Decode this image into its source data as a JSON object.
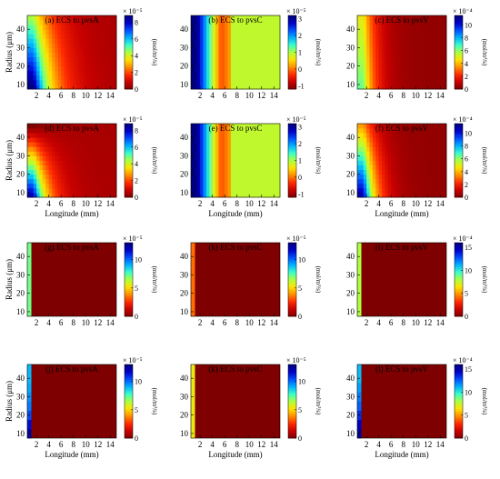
{
  "figure": {
    "colormap": [
      "#7f0000",
      "#c80000",
      "#ff2a00",
      "#ff8c00",
      "#ffe100",
      "#aeff3c",
      "#3cffc8",
      "#00b4ff",
      "#0050ff",
      "#0000c8",
      "#00007f"
    ]
  },
  "chart_data": [
    {
      "id": "a",
      "type": "heatmap",
      "title": "(a) ECS to pvsA",
      "row": 0,
      "col": 0,
      "xlabel": "",
      "ylabel": "Radius (μm)",
      "xticks": [
        2,
        4,
        6,
        8,
        10,
        12,
        14
      ],
      "yticks": [
        10,
        20,
        30,
        40
      ],
      "xlim": [
        0.5,
        15
      ],
      "ylim": [
        7.5,
        47.5
      ],
      "colorbar": {
        "ticks": [
          0,
          2,
          4,
          6,
          8
        ],
        "range": [
          0,
          8.8
        ],
        "exponent": "× 10⁻⁵",
        "unit": "(mol/m³/s)"
      },
      "pattern": "decay",
      "params": {
        "vmax": 9.0,
        "vmin": 0.5,
        "ax": 3.0,
        "cr": 0.55,
        "x0": 1.5
      }
    },
    {
      "id": "b",
      "type": "heatmap",
      "title": "(b) ECS to pvsC",
      "row": 0,
      "col": 1,
      "xlabel": "",
      "ylabel": "",
      "xticks": [
        2,
        4,
        6,
        8,
        10,
        12,
        14
      ],
      "yticks": [
        10,
        20,
        30,
        40
      ],
      "xlim": [
        0.5,
        15
      ],
      "ylim": [
        7.5,
        47.5
      ],
      "colorbar": {
        "ticks": [
          -1,
          0,
          1,
          2,
          3
        ],
        "range": [
          -1.2,
          3.2
        ],
        "exponent": "× 10⁻⁵",
        "unit": "(mol/m³/s)"
      },
      "pattern": "columns",
      "params": {
        "vmin": -1.1,
        "vmax": 3.1,
        "dip": 7.0,
        "plateau": 0.9,
        "x0": 1.5
      }
    },
    {
      "id": "c",
      "type": "heatmap",
      "title": "(c) ECS to pvsV",
      "row": 0,
      "col": 2,
      "xlabel": "",
      "ylabel": "",
      "xticks": [
        2,
        4,
        6,
        8,
        10,
        12,
        14
      ],
      "yticks": [
        10,
        20,
        30,
        40
      ],
      "xlim": [
        0.5,
        15
      ],
      "ylim": [
        7.5,
        47.5
      ],
      "colorbar": {
        "ticks": [
          0,
          2,
          4,
          6,
          8,
          10
        ],
        "range": [
          0,
          11.5
        ],
        "exponent": "× 10⁻⁴",
        "unit": "(mol/m³/s)"
      },
      "pattern": "decay",
      "params": {
        "vmax": 6.5,
        "vmin": 0.3,
        "ax": 2.0,
        "cr": 0.25,
        "x0": 1.5
      }
    },
    {
      "id": "d",
      "type": "heatmap",
      "title": "(d) ECS to pvsA",
      "row": 1,
      "col": 0,
      "xlabel": "Longitude (mm)",
      "ylabel": "Radius (μm)",
      "xticks": [
        2,
        4,
        6,
        8,
        10,
        12,
        14
      ],
      "yticks": [
        10,
        20,
        30,
        40
      ],
      "xlim": [
        0.5,
        15
      ],
      "ylim": [
        7.5,
        47.5
      ],
      "colorbar": {
        "ticks": [
          0,
          2,
          4,
          6,
          8
        ],
        "range": [
          0,
          8.8
        ],
        "exponent": "× 10⁻⁵",
        "unit": "(mol/m³/s)"
      },
      "pattern": "decay",
      "params": {
        "vmax": 8.5,
        "vmin": 0.5,
        "ax": 2.2,
        "cr": 1.1,
        "x0": 1.5
      }
    },
    {
      "id": "e",
      "type": "heatmap",
      "title": "(e) ECS to pvsC",
      "row": 1,
      "col": 1,
      "xlabel": "Longitude (mm)",
      "ylabel": "",
      "xticks": [
        2,
        4,
        6,
        8,
        10,
        12,
        14
      ],
      "yticks": [
        10,
        20,
        30,
        40
      ],
      "xlim": [
        0.5,
        15
      ],
      "ylim": [
        7.5,
        47.5
      ],
      "colorbar": {
        "ticks": [
          -1,
          0,
          1,
          2,
          3
        ],
        "range": [
          -1.2,
          3.2
        ],
        "exponent": "× 10⁻⁵",
        "unit": "(mol/m³/s)"
      },
      "pattern": "columns",
      "params": {
        "vmin": -1.1,
        "vmax": 3.1,
        "dip": 7.0,
        "plateau": 0.9,
        "x0": 1.5
      }
    },
    {
      "id": "f",
      "type": "heatmap",
      "title": "(f) ECS to pvsV",
      "row": 1,
      "col": 2,
      "xlabel": "Longitude (mm)",
      "ylabel": "",
      "xticks": [
        2,
        4,
        6,
        8,
        10,
        12,
        14
      ],
      "yticks": [
        10,
        20,
        30,
        40
      ],
      "xlim": [
        0.5,
        15
      ],
      "ylim": [
        7.5,
        47.5
      ],
      "colorbar": {
        "ticks": [
          0,
          2,
          4,
          6,
          8,
          10
        ],
        "range": [
          0,
          11.5
        ],
        "exponent": "× 10⁻⁴",
        "unit": "(mol/m³/s)"
      },
      "pattern": "decay",
      "params": {
        "vmax": 11.0,
        "vmin": 0.3,
        "ax": 2.0,
        "cr": 0.7,
        "x0": 1.5
      }
    },
    {
      "id": "g",
      "type": "heatmap",
      "title": "(g) ECS to pvsA",
      "row": 2,
      "col": 0,
      "xlabel": "",
      "ylabel": "Radius (μm)",
      "xticks": [
        2,
        4,
        6,
        8,
        10,
        12,
        14
      ],
      "yticks": [
        10,
        20,
        30,
        40
      ],
      "xlim": [
        0.5,
        15
      ],
      "ylim": [
        7.5,
        47.5
      ],
      "colorbar": {
        "ticks": [
          0,
          5,
          10
        ],
        "range": [
          0,
          13
        ],
        "exponent": "× 10⁻⁵",
        "unit": "(mol/m³/s)"
      },
      "pattern": "edge",
      "params": {
        "edge_values": [
          7.2
        ]
      }
    },
    {
      "id": "h",
      "type": "heatmap",
      "title": "(h) ECS to pvsC",
      "row": 2,
      "col": 1,
      "xlabel": "",
      "ylabel": "",
      "xticks": [
        2,
        4,
        6,
        8,
        10,
        12,
        14
      ],
      "yticks": [
        10,
        20,
        30,
        40
      ],
      "xlim": [
        0.5,
        15
      ],
      "ylim": [
        7.5,
        47.5
      ],
      "colorbar": {
        "ticks": [
          0,
          5,
          10
        ],
        "range": [
          0,
          13
        ],
        "exponent": "× 10⁻⁵",
        "unit": "(mol/m³/s)"
      },
      "pattern": "edge",
      "params": {
        "edge_values": [
          3.5
        ]
      }
    },
    {
      "id": "i",
      "type": "heatmap",
      "title": "(i) ECS to pvsV",
      "row": 2,
      "col": 2,
      "xlabel": "",
      "ylabel": "",
      "xticks": [
        2,
        4,
        6,
        8,
        10,
        12,
        14
      ],
      "yticks": [
        10,
        20,
        30,
        40
      ],
      "xlim": [
        0.5,
        15
      ],
      "ylim": [
        7.5,
        47.5
      ],
      "colorbar": {
        "ticks": [
          0,
          5,
          10,
          15
        ],
        "range": [
          0,
          16
        ],
        "exponent": "× 10⁻⁴",
        "unit": "(mol/m³/s)"
      },
      "pattern": "edge",
      "params": {
        "edge_values": [
          8.0
        ]
      }
    },
    {
      "id": "j",
      "type": "heatmap",
      "title": "(j) ECS to pvsA",
      "row": 3,
      "col": 0,
      "xlabel": "Longitude (mm)",
      "ylabel": "Radius (μm)",
      "xticks": [
        2,
        4,
        6,
        8,
        10,
        12,
        14
      ],
      "yticks": [
        10,
        20,
        30,
        40
      ],
      "xlim": [
        0.5,
        15
      ],
      "ylim": [
        7.5,
        47.5
      ],
      "colorbar": {
        "ticks": [
          0,
          5,
          10
        ],
        "range": [
          0,
          13
        ],
        "exponent": "× 10⁻⁵",
        "unit": "(mol/m³/s)"
      },
      "pattern": "edge",
      "params": {
        "edge_values": [
          12.5,
          11.5,
          10.5,
          9.8,
          9.5,
          9.2,
          9.0,
          9.0
        ]
      }
    },
    {
      "id": "k",
      "type": "heatmap",
      "title": "(k) ECS to pvsC",
      "row": 3,
      "col": 1,
      "xlabel": "Longitude (mm)",
      "ylabel": "",
      "xticks": [
        2,
        4,
        6,
        8,
        10,
        12,
        14
      ],
      "yticks": [
        10,
        20,
        30,
        40
      ],
      "xlim": [
        0.5,
        15
      ],
      "ylim": [
        7.5,
        47.5
      ],
      "colorbar": {
        "ticks": [
          0,
          5,
          10
        ],
        "range": [
          0,
          13
        ],
        "exponent": "× 10⁻⁵",
        "unit": "(mol/m³/s)"
      },
      "pattern": "edge",
      "params": {
        "edge_values": [
          5.5
        ]
      }
    },
    {
      "id": "l",
      "type": "heatmap",
      "title": "(l) ECS to pvsV",
      "row": 3,
      "col": 2,
      "xlabel": "Longitude (mm)",
      "ylabel": "",
      "xticks": [
        2,
        4,
        6,
        8,
        10,
        12,
        14
      ],
      "yticks": [
        10,
        20,
        30,
        40
      ],
      "xlim": [
        0.5,
        15
      ],
      "ylim": [
        7.5,
        47.5
      ],
      "colorbar": {
        "ticks": [
          0,
          5,
          10,
          15
        ],
        "range": [
          0,
          16
        ],
        "exponent": "× 10⁻⁴",
        "unit": "(mol/m³/s)"
      },
      "pattern": "edge",
      "params": {
        "edge_values": [
          15.5,
          14.5,
          13.5,
          12.5,
          12.0,
          11.5,
          11.0,
          11.0
        ]
      }
    }
  ]
}
